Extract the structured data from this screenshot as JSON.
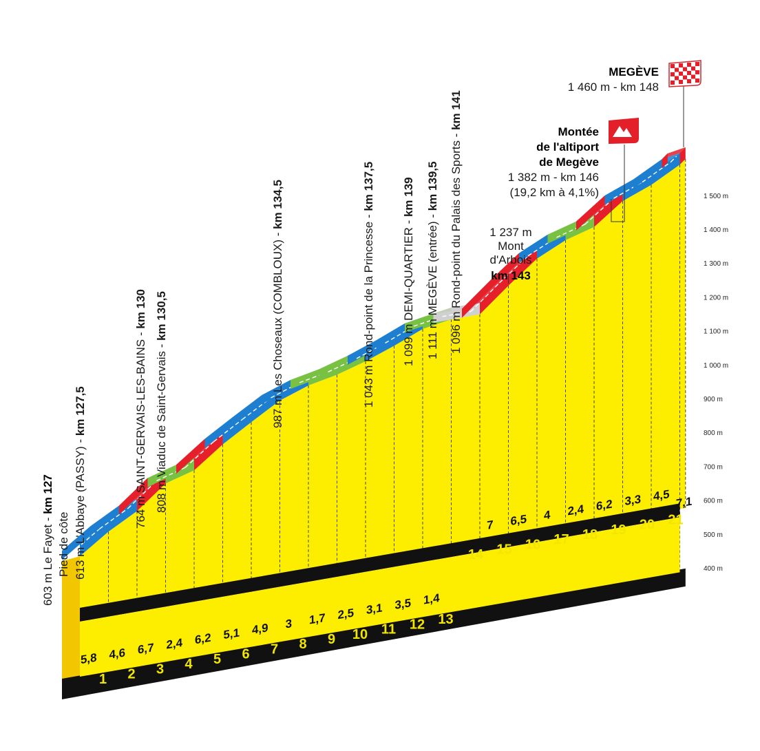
{
  "chart_data": {
    "type": "area",
    "title": "",
    "xlabel": "",
    "ylabel": "",
    "x_unit": "km",
    "x_ticks": [
      "1",
      "2",
      "3",
      "4",
      "5",
      "6",
      "7",
      "8",
      "9",
      "10",
      "11",
      "12",
      "13",
      "14",
      "15",
      "16",
      "17",
      "18",
      "19",
      "20",
      "21"
    ],
    "y_ticks": [
      "400 m",
      "500 m",
      "600 m",
      "700 m",
      "800 m",
      "900 m",
      "1 000 m",
      "1 100 m",
      "1 200 m",
      "1 300 m",
      "1 400 m",
      "1 500 m"
    ],
    "ylim": [
      400,
      1500
    ],
    "profile": [
      {
        "km": 0,
        "alt": 603
      },
      {
        "km": 1,
        "alt": 661
      },
      {
        "km": 2,
        "alt": 707
      },
      {
        "km": 3,
        "alt": 774
      },
      {
        "km": 4,
        "alt": 798
      },
      {
        "km": 5,
        "alt": 860
      },
      {
        "km": 6,
        "alt": 911
      },
      {
        "km": 7,
        "alt": 960
      },
      {
        "km": 8,
        "alt": 990
      },
      {
        "km": 9,
        "alt": 1007
      },
      {
        "km": 10,
        "alt": 1032
      },
      {
        "km": 11,
        "alt": 1063
      },
      {
        "km": 12,
        "alt": 1098
      },
      {
        "km": 13,
        "alt": 1112
      },
      {
        "km": 14,
        "alt": 1112
      },
      {
        "km": 15,
        "alt": 1182
      },
      {
        "km": 16,
        "alt": 1247
      },
      {
        "km": 17,
        "alt": 1287
      },
      {
        "km": 18,
        "alt": 1311
      },
      {
        "km": 19,
        "alt": 1373
      },
      {
        "km": 20,
        "alt": 1406
      },
      {
        "km": 21,
        "alt": 1451
      },
      {
        "km": 21.2,
        "alt": 1465
      }
    ],
    "gradients": [
      {
        "from_km": 0,
        "to_km": 1,
        "value": "5,8",
        "color": "#1e7fd1"
      },
      {
        "from_km": 1,
        "to_km": 2,
        "value": "4,6",
        "color": "#1e7fd1"
      },
      {
        "from_km": 2,
        "to_km": 3,
        "value": "6,7",
        "color": "#e5202a"
      },
      {
        "from_km": 3,
        "to_km": 4,
        "value": "2,4",
        "color": "#79c142"
      },
      {
        "from_km": 4,
        "to_km": 5,
        "value": "6,2",
        "color": "#e5202a"
      },
      {
        "from_km": 5,
        "to_km": 6,
        "value": "5,1",
        "color": "#1e7fd1"
      },
      {
        "from_km": 6,
        "to_km": 7,
        "value": "4,9",
        "color": "#1e7fd1"
      },
      {
        "from_km": 7,
        "to_km": 8,
        "value": "3",
        "color": "#1e7fd1"
      },
      {
        "from_km": 8,
        "to_km": 9,
        "value": "1,7",
        "color": "#79c142"
      },
      {
        "from_km": 9,
        "to_km": 10,
        "value": "2,5",
        "color": "#79c142"
      },
      {
        "from_km": 10,
        "to_km": 11,
        "value": "3,1",
        "color": "#1e7fd1"
      },
      {
        "from_km": 11,
        "to_km": 12,
        "value": "3,5",
        "color": "#1e7fd1"
      },
      {
        "from_km": 12,
        "to_km": 13,
        "value": "1,4",
        "color": "#79c142"
      },
      {
        "from_km": 13,
        "to_km": 14,
        "value": "",
        "color": "#d0d0d0"
      },
      {
        "from_km": 14,
        "to_km": 15,
        "value": "7",
        "color": "#e5202a"
      },
      {
        "from_km": 15,
        "to_km": 16,
        "value": "6,5",
        "color": "#e5202a"
      },
      {
        "from_km": 16,
        "to_km": 17,
        "value": "4",
        "color": "#1e7fd1"
      },
      {
        "from_km": 17,
        "to_km": 18,
        "value": "2,4",
        "color": "#79c142"
      },
      {
        "from_km": 18,
        "to_km": 19,
        "value": "6,2",
        "color": "#e5202a"
      },
      {
        "from_km": 19,
        "to_km": 20,
        "value": "3,3",
        "color": "#1e7fd1"
      },
      {
        "from_km": 20,
        "to_km": 21,
        "value": "4,5",
        "color": "#1e7fd1"
      },
      {
        "from_km": 21,
        "to_km": 21.2,
        "value": "7,1",
        "color": "#e5202a"
      }
    ],
    "annotations": {
      "start": {
        "line1_normal": "603 m Le Fayet - ",
        "line1_bold": "km 127",
        "line2": "Pied de côte",
        "line3_normal": "613 m L'Abbaye (PASSY) - ",
        "line3_bold": "km 127,5"
      },
      "stgervais": {
        "line1_normal": "764 m SAINT-GERVAIS-LES-BAINS - ",
        "line1_bold": "km 130",
        "line2_normal": "808 m Viaduc de Saint-Gervais - ",
        "line2_bold": "km 130,5"
      },
      "choseaux": {
        "normal": "987 m Les Choseaux (COMBLOUX) - ",
        "bold": "km 134,5"
      },
      "princesse": {
        "normal": "1 043 m Rond-point de la Princesse - ",
        "bold": "km 137,5"
      },
      "demiquartier": {
        "normal": "1 099 m DEMI-QUARTIER - ",
        "bold": "km 139"
      },
      "megeve_entree": {
        "normal": "1 111 m MEGÈVE (entrée) - ",
        "bold": "km 139,5"
      },
      "palais": {
        "normal": "1 096 m Rond-point du Palais des Sports - ",
        "bold": "km 141"
      },
      "mont_arbois": {
        "line1": "1 237 m",
        "line2": "Mont",
        "line3": "d'Arbois",
        "line4": "km 143"
      },
      "altiport": {
        "line1": "Montée",
        "line2": "de l'altiport",
        "line3": "de Megève",
        "line4": "1 382 m - km 146",
        "line5": "(19,2 km à 4,1%)"
      },
      "finish": {
        "line1": "MEGÈVE",
        "line2": "1 460 m - km 148"
      }
    },
    "colors": {
      "fill": "#fdee00",
      "front": "#f2c600",
      "base": "#111111",
      "easy": "#79c142",
      "medium": "#1e7fd1",
      "hard": "#e5202a",
      "flat": "#d0d0d0",
      "flag": "#e3202a"
    }
  }
}
